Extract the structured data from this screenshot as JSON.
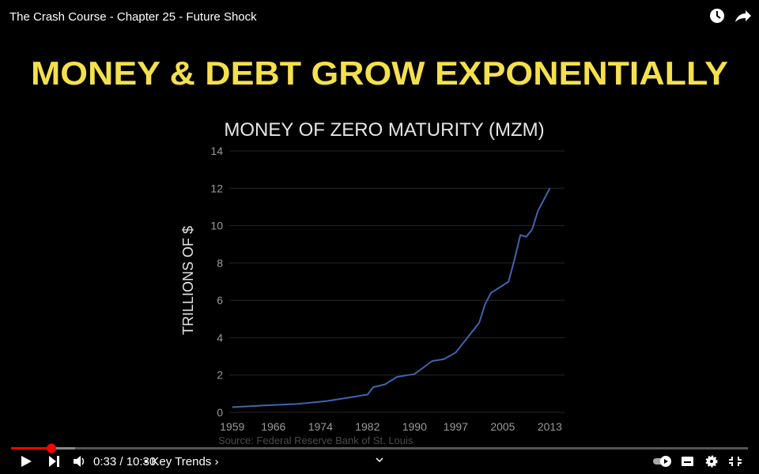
{
  "header": {
    "title": "The Crash Course - Chapter 25 - Future Shock"
  },
  "slide": {
    "heading": "MONEY & DEBT GROW EXPONENTIALLY",
    "source": "Source: Federal Reserve Bank of St. Louis"
  },
  "controls": {
    "time": "0:33 / 10:30",
    "chapter": "• Key Trends ›"
  },
  "chart_data": {
    "type": "line",
    "title": "MONEY OF ZERO MATURITY (MZM)",
    "y_label": "TRILLIONS OF $",
    "x": [
      1959,
      1965,
      1970,
      1975,
      1980,
      1982,
      1983,
      1985,
      1987,
      1989,
      1990,
      1993,
      1995,
      1997,
      1999,
      2001,
      2002,
      2003,
      2004,
      2006,
      2007,
      2008,
      2009,
      2010,
      2011,
      2012,
      2013
    ],
    "values": [
      0.28,
      0.38,
      0.45,
      0.6,
      0.85,
      0.95,
      1.35,
      1.5,
      1.9,
      2.0,
      2.05,
      2.75,
      2.85,
      3.2,
      4.0,
      4.8,
      5.8,
      6.4,
      6.6,
      7.0,
      8.2,
      9.5,
      9.4,
      9.8,
      10.8,
      11.4,
      12.0
    ],
    "color": "#4064b0",
    "xlim": [
      1958.5,
      2015.5
    ],
    "xticks": [
      1959,
      1966,
      1974,
      1982,
      1990,
      1997,
      2005,
      2013
    ],
    "ylim": [
      0,
      14
    ],
    "yticks": [
      0,
      2,
      4,
      6,
      8,
      10,
      12,
      14
    ],
    "grid": true
  }
}
